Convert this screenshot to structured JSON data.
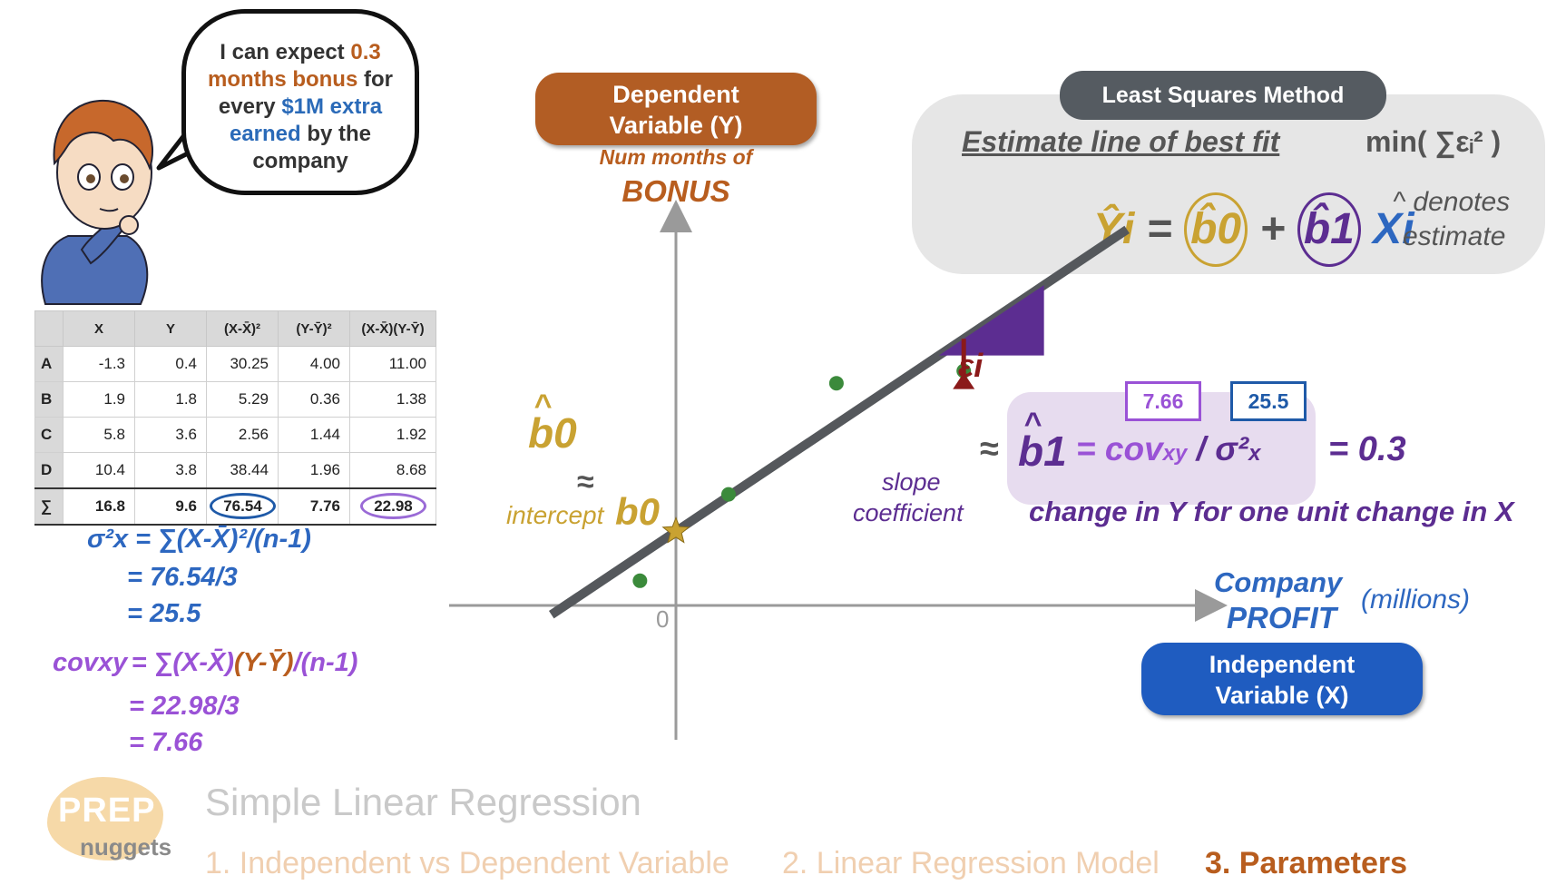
{
  "speech_bubble": {
    "p1": "I can expect ",
    "p2": "0.3",
    "p3": "months bonus",
    "p4": " for every ",
    "p5": "$1M extra earned",
    "p6": " by the company"
  },
  "table": {
    "headers": [
      "",
      "X",
      "Y",
      "(X-X̄)²",
      "(Y-Ȳ)²",
      "(X-X̄)(Y-Ȳ)"
    ],
    "rows": [
      [
        "A",
        "-1.3",
        "0.4",
        "30.25",
        "4.00",
        "11.00"
      ],
      [
        "B",
        "1.9",
        "1.8",
        "5.29",
        "0.36",
        "1.38"
      ],
      [
        "C",
        "5.8",
        "3.6",
        "2.56",
        "1.44",
        "1.92"
      ],
      [
        "D",
        "10.4",
        "3.8",
        "38.44",
        "1.96",
        "8.68"
      ]
    ],
    "sum_row": [
      "∑",
      "16.8",
      "9.6",
      "76.54",
      "7.76",
      "22.98"
    ]
  },
  "variance": {
    "lhs": "σ²x",
    "l1": "= ∑(X-X̄)²/(n-1)",
    "l2": "= 76.54/3",
    "l3": "= 25.5"
  },
  "covariance": {
    "lhs": "covxy",
    "l1a": "= ∑(X-X̄)",
    "l1b": "(Y-Ȳ)",
    "l1c": "/(n-1)",
    "l2": "= 22.98/3",
    "l3": "= 7.66"
  },
  "dependent": {
    "pill_line1": "Dependent",
    "pill_line2": "Variable (Y)",
    "sub1": "Num months of",
    "sub2": "BONUS"
  },
  "independent": {
    "pill_line1": "Independent",
    "pill_line2": "Variable (X)",
    "label1": "Company",
    "label2": "PROFIT",
    "units": "(millions)"
  },
  "least_squares": {
    "title": "Least Squares Method",
    "subtitle": "Estimate line of best fit",
    "minimize": "min( ∑εᵢ² )",
    "eq_y": "Ŷi",
    "eq_eq": "=",
    "eq_b0": "b̂0",
    "eq_plus": "+",
    "eq_b1": "b̂1",
    "eq_x": "Xi",
    "note1": "^ denotes",
    "note2": "estimate"
  },
  "intercept": {
    "hat_b0": "b0",
    "approx": "≈",
    "word": "intercept",
    "b0": "b0"
  },
  "slope": {
    "b1": "b1",
    "word1": "slope",
    "word2": "coefficient",
    "approx": "≈",
    "hat_b1": "b1",
    "formula_a": "= cov",
    "formula_sub": "xy",
    "formula_b": "/ σ²",
    "formula_c": "x",
    "result": "= 0.3",
    "cov_value": "7.66",
    "var_value": "25.5",
    "meaning": "change in Y for one unit change in X"
  },
  "residual": {
    "label": "εi"
  },
  "axis": {
    "origin": "0"
  },
  "brand": {
    "top": "PREP",
    "bottom": "nuggets"
  },
  "deck_title": "Simple Linear Regression",
  "nav": {
    "item1": "1. Independent vs Dependent Variable",
    "item2": "2. Linear Regression Model",
    "item3": "3. Parameters"
  },
  "colors": {
    "orange": "#b85d1e",
    "blue": "#2d67c0",
    "purple": "#5c2d91",
    "lilac": "#9a52d6",
    "gold": "#c9a232",
    "dark_red": "#8b1a1a",
    "point_green": "#3b8a3b"
  },
  "chart_data": {
    "type": "scatter",
    "points": [
      {
        "name": "A",
        "x": -1.3,
        "y": 0.4
      },
      {
        "name": "B",
        "x": 1.9,
        "y": 1.8
      },
      {
        "name": "C",
        "x": 5.8,
        "y": 3.6
      },
      {
        "name": "D",
        "x": 10.4,
        "y": 3.8
      }
    ],
    "regression_line": {
      "intercept": 1.2,
      "slope": 0.3
    },
    "xlim": [
      -3,
      12.5
    ],
    "ylim": [
      -1.5,
      5.5
    ],
    "xlabel": "Company PROFIT (millions)",
    "ylabel": "Num months of BONUS",
    "tick_labels": [
      "0"
    ]
  }
}
